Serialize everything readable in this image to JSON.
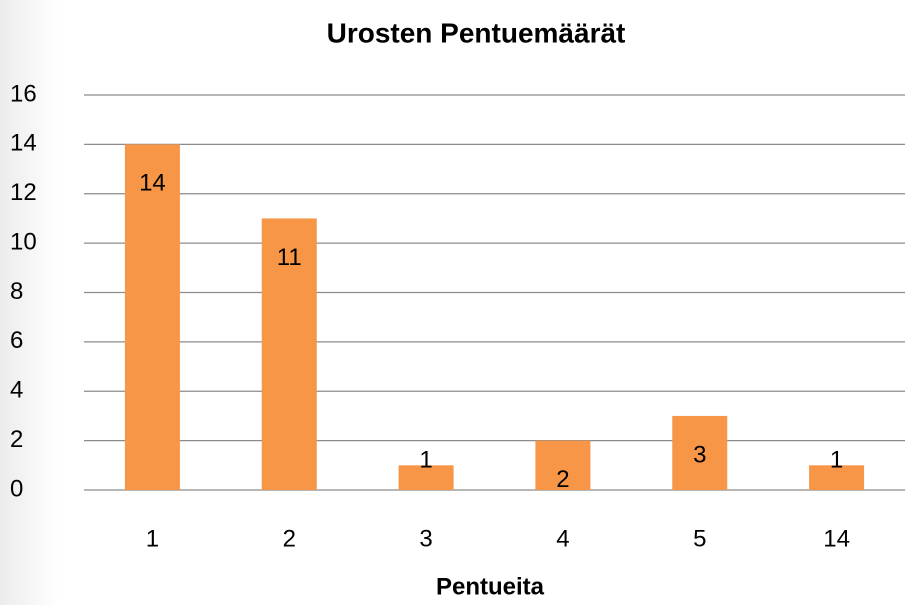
{
  "chart_data": {
    "type": "bar",
    "title": "Urosten Pentuemäärät",
    "x_label": "Pentueita",
    "categories": [
      "1",
      "2",
      "3",
      "4",
      "5",
      "14"
    ],
    "values": [
      14,
      11,
      1,
      2,
      3,
      1
    ],
    "color": "#f79646",
    "ylim": [
      0,
      16
    ],
    "yticks": [
      0,
      2,
      4,
      6,
      8,
      10,
      12,
      14,
      16
    ],
    "grid": true
  }
}
